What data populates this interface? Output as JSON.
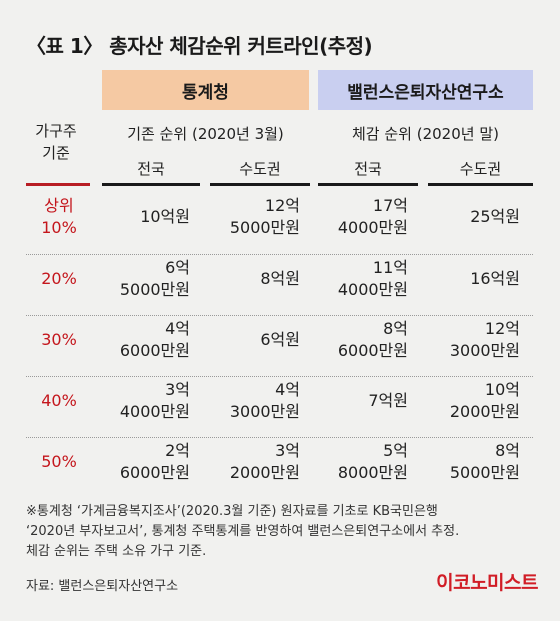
{
  "title": "〈표 1〉 총자산 체감순위 커트라인(추정)",
  "header": {
    "left_group": "통계청",
    "right_group": "밸런스은퇴자산연구소",
    "left_sub": "기존 순위 (2020년 3월)",
    "right_sub": "체감 순위 (2020년 말)",
    "row_label_line1": "가구주",
    "row_label_line2": "기준",
    "columns": [
      "전국",
      "수도권",
      "전국",
      "수도권"
    ]
  },
  "rows": [
    {
      "rank_line1": "상위",
      "rank_line2": "10%",
      "cells": [
        [
          "10억원"
        ],
        [
          "12억",
          "5000만원"
        ],
        [
          "17억",
          "4000만원"
        ],
        [
          "25억원"
        ]
      ]
    },
    {
      "rank_line1": "20%",
      "rank_line2": "",
      "cells": [
        [
          "6억",
          "5000만원"
        ],
        [
          "8억원"
        ],
        [
          "11억",
          "4000만원"
        ],
        [
          "16억원"
        ]
      ]
    },
    {
      "rank_line1": "30%",
      "rank_line2": "",
      "cells": [
        [
          "4억",
          "6000만원"
        ],
        [
          "6억원"
        ],
        [
          "8억",
          "6000만원"
        ],
        [
          "12억",
          "3000만원"
        ]
      ]
    },
    {
      "rank_line1": "40%",
      "rank_line2": "",
      "cells": [
        [
          "3억",
          "4000만원"
        ],
        [
          "4억",
          "3000만원"
        ],
        [
          "7억원"
        ],
        [
          "10억",
          "2000만원"
        ]
      ]
    },
    {
      "rank_line1": "50%",
      "rank_line2": "",
      "cells": [
        [
          "2억",
          "6000만원"
        ],
        [
          "3억",
          "2000만원"
        ],
        [
          "5억",
          "8000만원"
        ],
        [
          "8억",
          "5000만원"
        ]
      ]
    }
  ],
  "note": {
    "line1": "※통계청 ‘가계금융복지조사’(2020.3월 기준) 원자료를 기초로 KB국민은행",
    "line2": "‘2020년 부자보고서’, 통계청 주택통계를 반영하여 밸런스은퇴연구소에서 추정.",
    "line3": "체감 순위는 주택 소유 가구 기준."
  },
  "source": "자료: 밸런스은퇴자산연구소",
  "logo": "이코노미스트",
  "colors": {
    "accent_red": "#c4161c",
    "orange_header": "#f5c9a3",
    "blue_header": "#c9cff0",
    "background": "#f1f1ef"
  }
}
